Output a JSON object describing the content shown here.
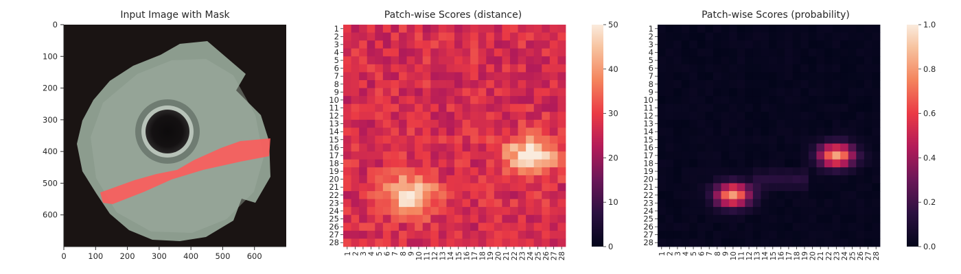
{
  "chart_data": [
    {
      "type": "image",
      "title": "Input Image with Mask",
      "x_ticks": [
        0,
        100,
        200,
        300,
        400,
        500,
        600
      ],
      "y_ticks": [
        0,
        100,
        200,
        300,
        400,
        500,
        600
      ],
      "xlim": [
        0,
        700
      ],
      "ylim": [
        700,
        0
      ],
      "image_size": [
        700,
        700
      ],
      "colors": {
        "background": "#1a1413",
        "metal": "#8c9c8e",
        "mask": "#ff5a5a"
      }
    },
    {
      "type": "heatmap",
      "title": "Patch-wise Scores (distance)",
      "x_labels": [
        "1",
        "2",
        "3",
        "4",
        "5",
        "6",
        "7",
        "8",
        "9",
        "10",
        "11",
        "12",
        "13",
        "14",
        "15",
        "16",
        "17",
        "18",
        "19",
        "20",
        "21",
        "22",
        "23",
        "24",
        "25",
        "26",
        "27",
        "28"
      ],
      "y_labels": [
        "1",
        "2",
        "3",
        "4",
        "5",
        "6",
        "7",
        "8",
        "9",
        "10",
        "11",
        "12",
        "13",
        "14",
        "15",
        "16",
        "17",
        "18",
        "19",
        "20",
        "21",
        "22",
        "23",
        "24",
        "25",
        "26",
        "27",
        "28"
      ],
      "colorbar": {
        "min": 0,
        "max": 50,
        "ticks": [
          0,
          10,
          20,
          30,
          40,
          50
        ],
        "colormap": "rocket"
      },
      "hotspots": [
        {
          "row": 17,
          "col": 24,
          "value": 50
        },
        {
          "row": 22,
          "col": 9,
          "value": 50
        }
      ],
      "baseline": 27
    },
    {
      "type": "heatmap",
      "title": "Patch-wise Scores (probability)",
      "x_labels": [
        "1",
        "2",
        "3",
        "4",
        "5",
        "6",
        "7",
        "8",
        "9",
        "10",
        "11",
        "12",
        "13",
        "14",
        "15",
        "16",
        "17",
        "18",
        "19",
        "20",
        "21",
        "22",
        "23",
        "24",
        "25",
        "26",
        "27",
        "28"
      ],
      "y_labels": [
        "1",
        "2",
        "3",
        "4",
        "5",
        "6",
        "7",
        "8",
        "9",
        "10",
        "11",
        "12",
        "13",
        "14",
        "15",
        "16",
        "17",
        "18",
        "19",
        "20",
        "21",
        "22",
        "23",
        "24",
        "25",
        "26",
        "27",
        "28"
      ],
      "colorbar": {
        "min": 0.0,
        "max": 1.0,
        "ticks": [
          "0.0",
          "0.2",
          "0.4",
          "0.6",
          "0.8",
          "1.0"
        ],
        "colormap": "rocket"
      },
      "hotspots": [
        {
          "row": 17,
          "col": 23,
          "value": 0.8
        },
        {
          "row": 22,
          "col": 10,
          "value": 0.8
        }
      ]
    }
  ]
}
